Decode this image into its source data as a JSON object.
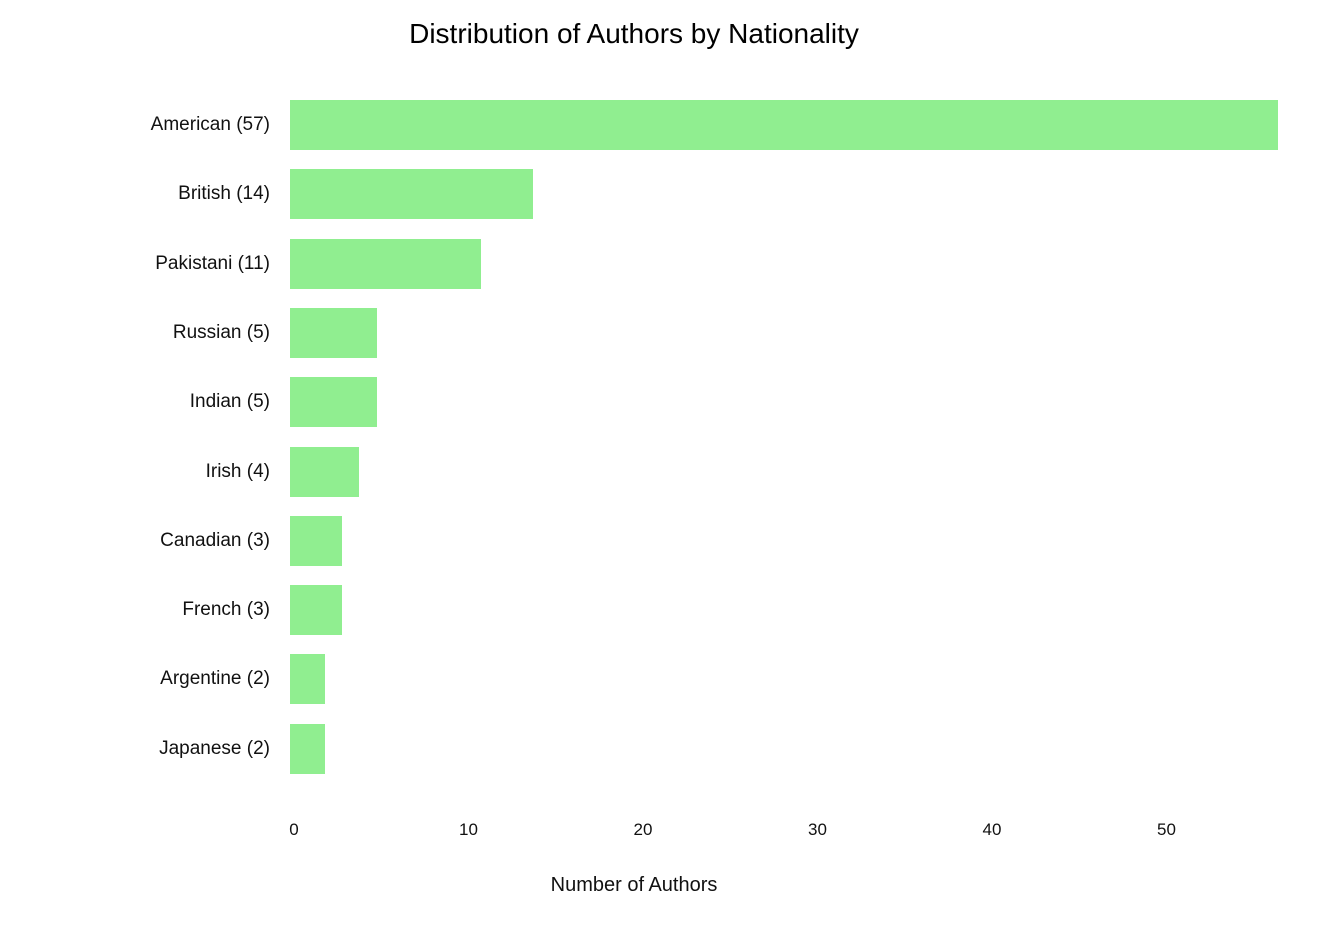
{
  "chart_data": {
    "type": "bar",
    "orientation": "horizontal",
    "title": "Distribution of Authors by Nationality",
    "xlabel": "Number of Authors",
    "ylabel": "",
    "categories": [
      "American (57)",
      "British (14)",
      "Pakistani (11)",
      "Russian (5)",
      "Indian (5)",
      "Irish (4)",
      "Canadian (3)",
      "French (3)",
      "Argentine (2)",
      "Japanese (2)"
    ],
    "values": [
      57,
      14,
      11,
      5,
      5,
      4,
      3,
      3,
      2,
      2
    ],
    "x_ticks": [
      0,
      10,
      20,
      30,
      40,
      50
    ],
    "xlim": [
      0,
      57
    ],
    "bar_color": "#90EE90",
    "background_color": "#FFFFFF",
    "text_color": "#111111",
    "grid": false,
    "legend_position": "none"
  }
}
